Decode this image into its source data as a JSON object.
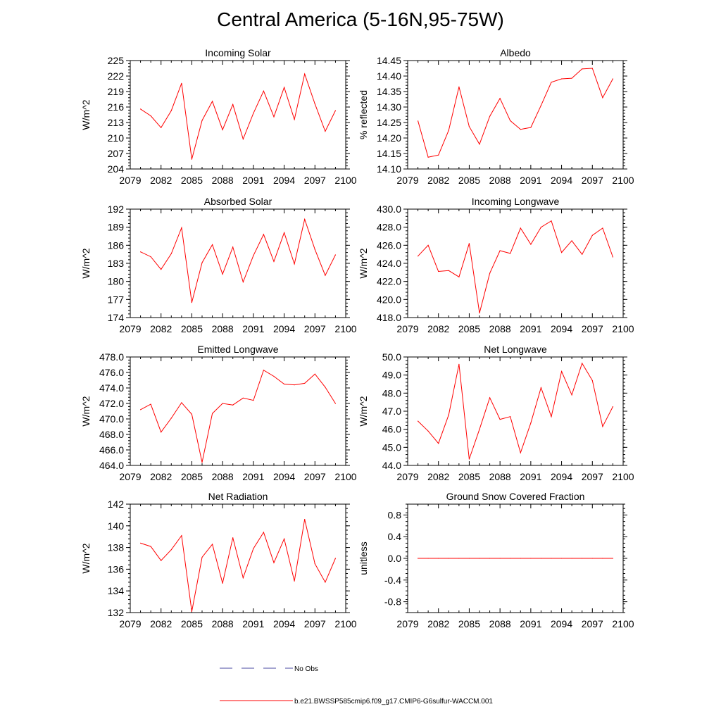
{
  "page": {
    "title": "Central America (5-16N,95-75W)"
  },
  "colors": {
    "series": "#ff0000",
    "obs": "#4a4aa0",
    "axis": "#000000"
  },
  "legend": {
    "obs_label": "No Obs",
    "model_label": "b.e21.BWSSP585cmip6.f09_g17.CMIP6-G6sulfur-WACCM.001"
  },
  "chart_data": [
    {
      "type": "line",
      "title": "Incoming Solar",
      "ylabel": "W/m^2",
      "xlim": [
        2079,
        2100
      ],
      "ylim": [
        204,
        225
      ],
      "xticks": [
        "2079",
        "2082",
        "2085",
        "2088",
        "2091",
        "2094",
        "2097",
        "2100"
      ],
      "yticks": [
        "204",
        "207",
        "210",
        "213",
        "216",
        "219",
        "222",
        "225"
      ],
      "x": [
        2080,
        2081,
        2082,
        2083,
        2084,
        2085,
        2086,
        2087,
        2088,
        2089,
        2090,
        2091,
        2092,
        2093,
        2094,
        2095,
        2096,
        2097,
        2098,
        2099
      ],
      "series": [
        {
          "values": [
            215.6,
            214.3,
            212.0,
            215.3,
            220.6,
            205.9,
            213.4,
            217.1,
            211.6,
            216.5,
            209.8,
            214.8,
            219.1,
            214.1,
            219.8,
            213.6,
            222.4,
            216.6,
            211.3,
            215.3
          ]
        }
      ]
    },
    {
      "type": "line",
      "title": "Albedo",
      "ylabel": "% reflected",
      "xlim": [
        2079,
        2100
      ],
      "ylim": [
        14.1,
        14.45
      ],
      "xticks": [
        "2079",
        "2082",
        "2085",
        "2088",
        "2091",
        "2094",
        "2097",
        "2100"
      ],
      "yticks": [
        "14.10",
        "14.15",
        "14.20",
        "14.25",
        "14.30",
        "14.35",
        "14.40",
        "14.45"
      ],
      "x": [
        2080,
        2081,
        2082,
        2083,
        2084,
        2085,
        2086,
        2087,
        2088,
        2089,
        2090,
        2091,
        2092,
        2093,
        2094,
        2095,
        2096,
        2097,
        2098,
        2099
      ],
      "series": [
        {
          "values": [
            14.255,
            14.138,
            14.145,
            14.225,
            14.365,
            14.237,
            14.18,
            14.27,
            14.328,
            14.256,
            14.228,
            14.234,
            14.305,
            14.38,
            14.391,
            14.393,
            14.423,
            14.425,
            14.33,
            14.391
          ]
        }
      ]
    },
    {
      "type": "line",
      "title": "Absorbed Solar",
      "ylabel": "W/m^2",
      "xlim": [
        2079,
        2100
      ],
      "ylim": [
        174,
        192
      ],
      "xticks": [
        "2079",
        "2082",
        "2085",
        "2088",
        "2091",
        "2094",
        "2097",
        "2100"
      ],
      "yticks": [
        "174",
        "177",
        "180",
        "183",
        "186",
        "189",
        "192"
      ],
      "x": [
        2080,
        2081,
        2082,
        2083,
        2084,
        2085,
        2086,
        2087,
        2088,
        2089,
        2090,
        2091,
        2092,
        2093,
        2094,
        2095,
        2096,
        2097,
        2098,
        2099
      ],
      "series": [
        {
          "values": [
            184.9,
            184.1,
            182.0,
            184.6,
            188.9,
            176.5,
            183.1,
            186.1,
            181.2,
            185.7,
            179.9,
            184.3,
            187.8,
            183.3,
            188.1,
            182.9,
            190.3,
            185.3,
            181.0,
            184.4
          ]
        }
      ]
    },
    {
      "type": "line",
      "title": "Incoming Longwave",
      "ylabel": "W/m^2",
      "xlim": [
        2079,
        2100
      ],
      "ylim": [
        418.0,
        430.0
      ],
      "xticks": [
        "2079",
        "2082",
        "2085",
        "2088",
        "2091",
        "2094",
        "2097",
        "2100"
      ],
      "yticks": [
        "418.0",
        "420.0",
        "422.0",
        "424.0",
        "426.0",
        "428.0",
        "430.0"
      ],
      "x": [
        2080,
        2081,
        2082,
        2083,
        2084,
        2085,
        2086,
        2087,
        2088,
        2089,
        2090,
        2091,
        2092,
        2093,
        2094,
        2095,
        2096,
        2097,
        2098,
        2099
      ],
      "series": [
        {
          "values": [
            424.8,
            426.0,
            423.1,
            423.2,
            422.5,
            426.2,
            418.5,
            422.9,
            425.4,
            425.1,
            427.9,
            426.1,
            428.0,
            428.7,
            425.2,
            426.5,
            425.0,
            427.1,
            427.9,
            424.7
          ]
        }
      ]
    },
    {
      "type": "line",
      "title": "Emitted Longwave",
      "ylabel": "W/m^2",
      "xlim": [
        2079,
        2100
      ],
      "ylim": [
        464.0,
        478.0
      ],
      "xticks": [
        "2079",
        "2082",
        "2085",
        "2088",
        "2091",
        "2094",
        "2097",
        "2100"
      ],
      "yticks": [
        "464.0",
        "466.0",
        "468.0",
        "470.0",
        "472.0",
        "474.0",
        "476.0",
        "478.0"
      ],
      "x": [
        2080,
        2081,
        2082,
        2083,
        2084,
        2085,
        2086,
        2087,
        2088,
        2089,
        2090,
        2091,
        2092,
        2093,
        2094,
        2095,
        2096,
        2097,
        2098,
        2099
      ],
      "series": [
        {
          "values": [
            471.2,
            471.9,
            468.3,
            470.1,
            472.1,
            470.6,
            464.4,
            470.7,
            472.0,
            471.8,
            472.7,
            472.4,
            476.3,
            475.5,
            474.5,
            474.4,
            474.6,
            475.8,
            474.1,
            472.0
          ]
        }
      ]
    },
    {
      "type": "line",
      "title": "Net Longwave",
      "ylabel": "W/m^2",
      "xlim": [
        2079,
        2100
      ],
      "ylim": [
        44.0,
        50.0
      ],
      "xticks": [
        "2079",
        "2082",
        "2085",
        "2088",
        "2091",
        "2094",
        "2097",
        "2100"
      ],
      "yticks": [
        "44.0",
        "45.0",
        "46.0",
        "47.0",
        "48.0",
        "49.0",
        "50.0"
      ],
      "x": [
        2080,
        2081,
        2082,
        2083,
        2084,
        2085,
        2086,
        2087,
        2088,
        2089,
        2090,
        2091,
        2092,
        2093,
        2094,
        2095,
        2096,
        2097,
        2098,
        2099
      ],
      "series": [
        {
          "values": [
            46.45,
            45.9,
            45.22,
            46.8,
            49.6,
            44.35,
            46.0,
            47.75,
            46.55,
            46.7,
            44.7,
            46.35,
            48.3,
            46.7,
            49.2,
            47.9,
            49.65,
            48.7,
            46.15,
            47.25
          ]
        }
      ]
    },
    {
      "type": "line",
      "title": "Net Radiation",
      "ylabel": "W/m^2",
      "xlim": [
        2079,
        2100
      ],
      "ylim": [
        132,
        142
      ],
      "xticks": [
        "2079",
        "2082",
        "2085",
        "2088",
        "2091",
        "2094",
        "2097",
        "2100"
      ],
      "yticks": [
        "132",
        "134",
        "136",
        "138",
        "140",
        "142"
      ],
      "x": [
        2080,
        2081,
        2082,
        2083,
        2084,
        2085,
        2086,
        2087,
        2088,
        2089,
        2090,
        2091,
        2092,
        2093,
        2094,
        2095,
        2096,
        2097,
        2098,
        2099
      ],
      "series": [
        {
          "values": [
            138.4,
            138.1,
            136.8,
            137.8,
            139.1,
            132.1,
            137.1,
            138.3,
            134.7,
            138.9,
            135.2,
            137.9,
            139.4,
            136.6,
            138.8,
            134.9,
            140.6,
            136.5,
            134.8,
            137.0
          ]
        }
      ]
    },
    {
      "type": "line",
      "title": "Ground Snow Covered Fraction",
      "ylabel": "unitless",
      "xlim": [
        2079,
        2100
      ],
      "ylim": [
        -1.0,
        1.0
      ],
      "xticks": [
        "2079",
        "2082",
        "2085",
        "2088",
        "2091",
        "2094",
        "2097",
        "2100"
      ],
      "yticks": [
        "-0.8",
        "-0.4",
        "0.0",
        "0.4",
        "0.8"
      ],
      "ytick_values": [
        -0.8,
        -0.4,
        0.0,
        0.4,
        0.8
      ],
      "x": [
        2080,
        2081,
        2082,
        2083,
        2084,
        2085,
        2086,
        2087,
        2088,
        2089,
        2090,
        2091,
        2092,
        2093,
        2094,
        2095,
        2096,
        2097,
        2098,
        2099
      ],
      "series": [
        {
          "values": [
            0,
            0,
            0,
            0,
            0,
            0,
            0,
            0,
            0,
            0,
            0,
            0,
            0,
            0,
            0,
            0,
            0,
            0,
            0,
            0
          ]
        }
      ]
    }
  ]
}
